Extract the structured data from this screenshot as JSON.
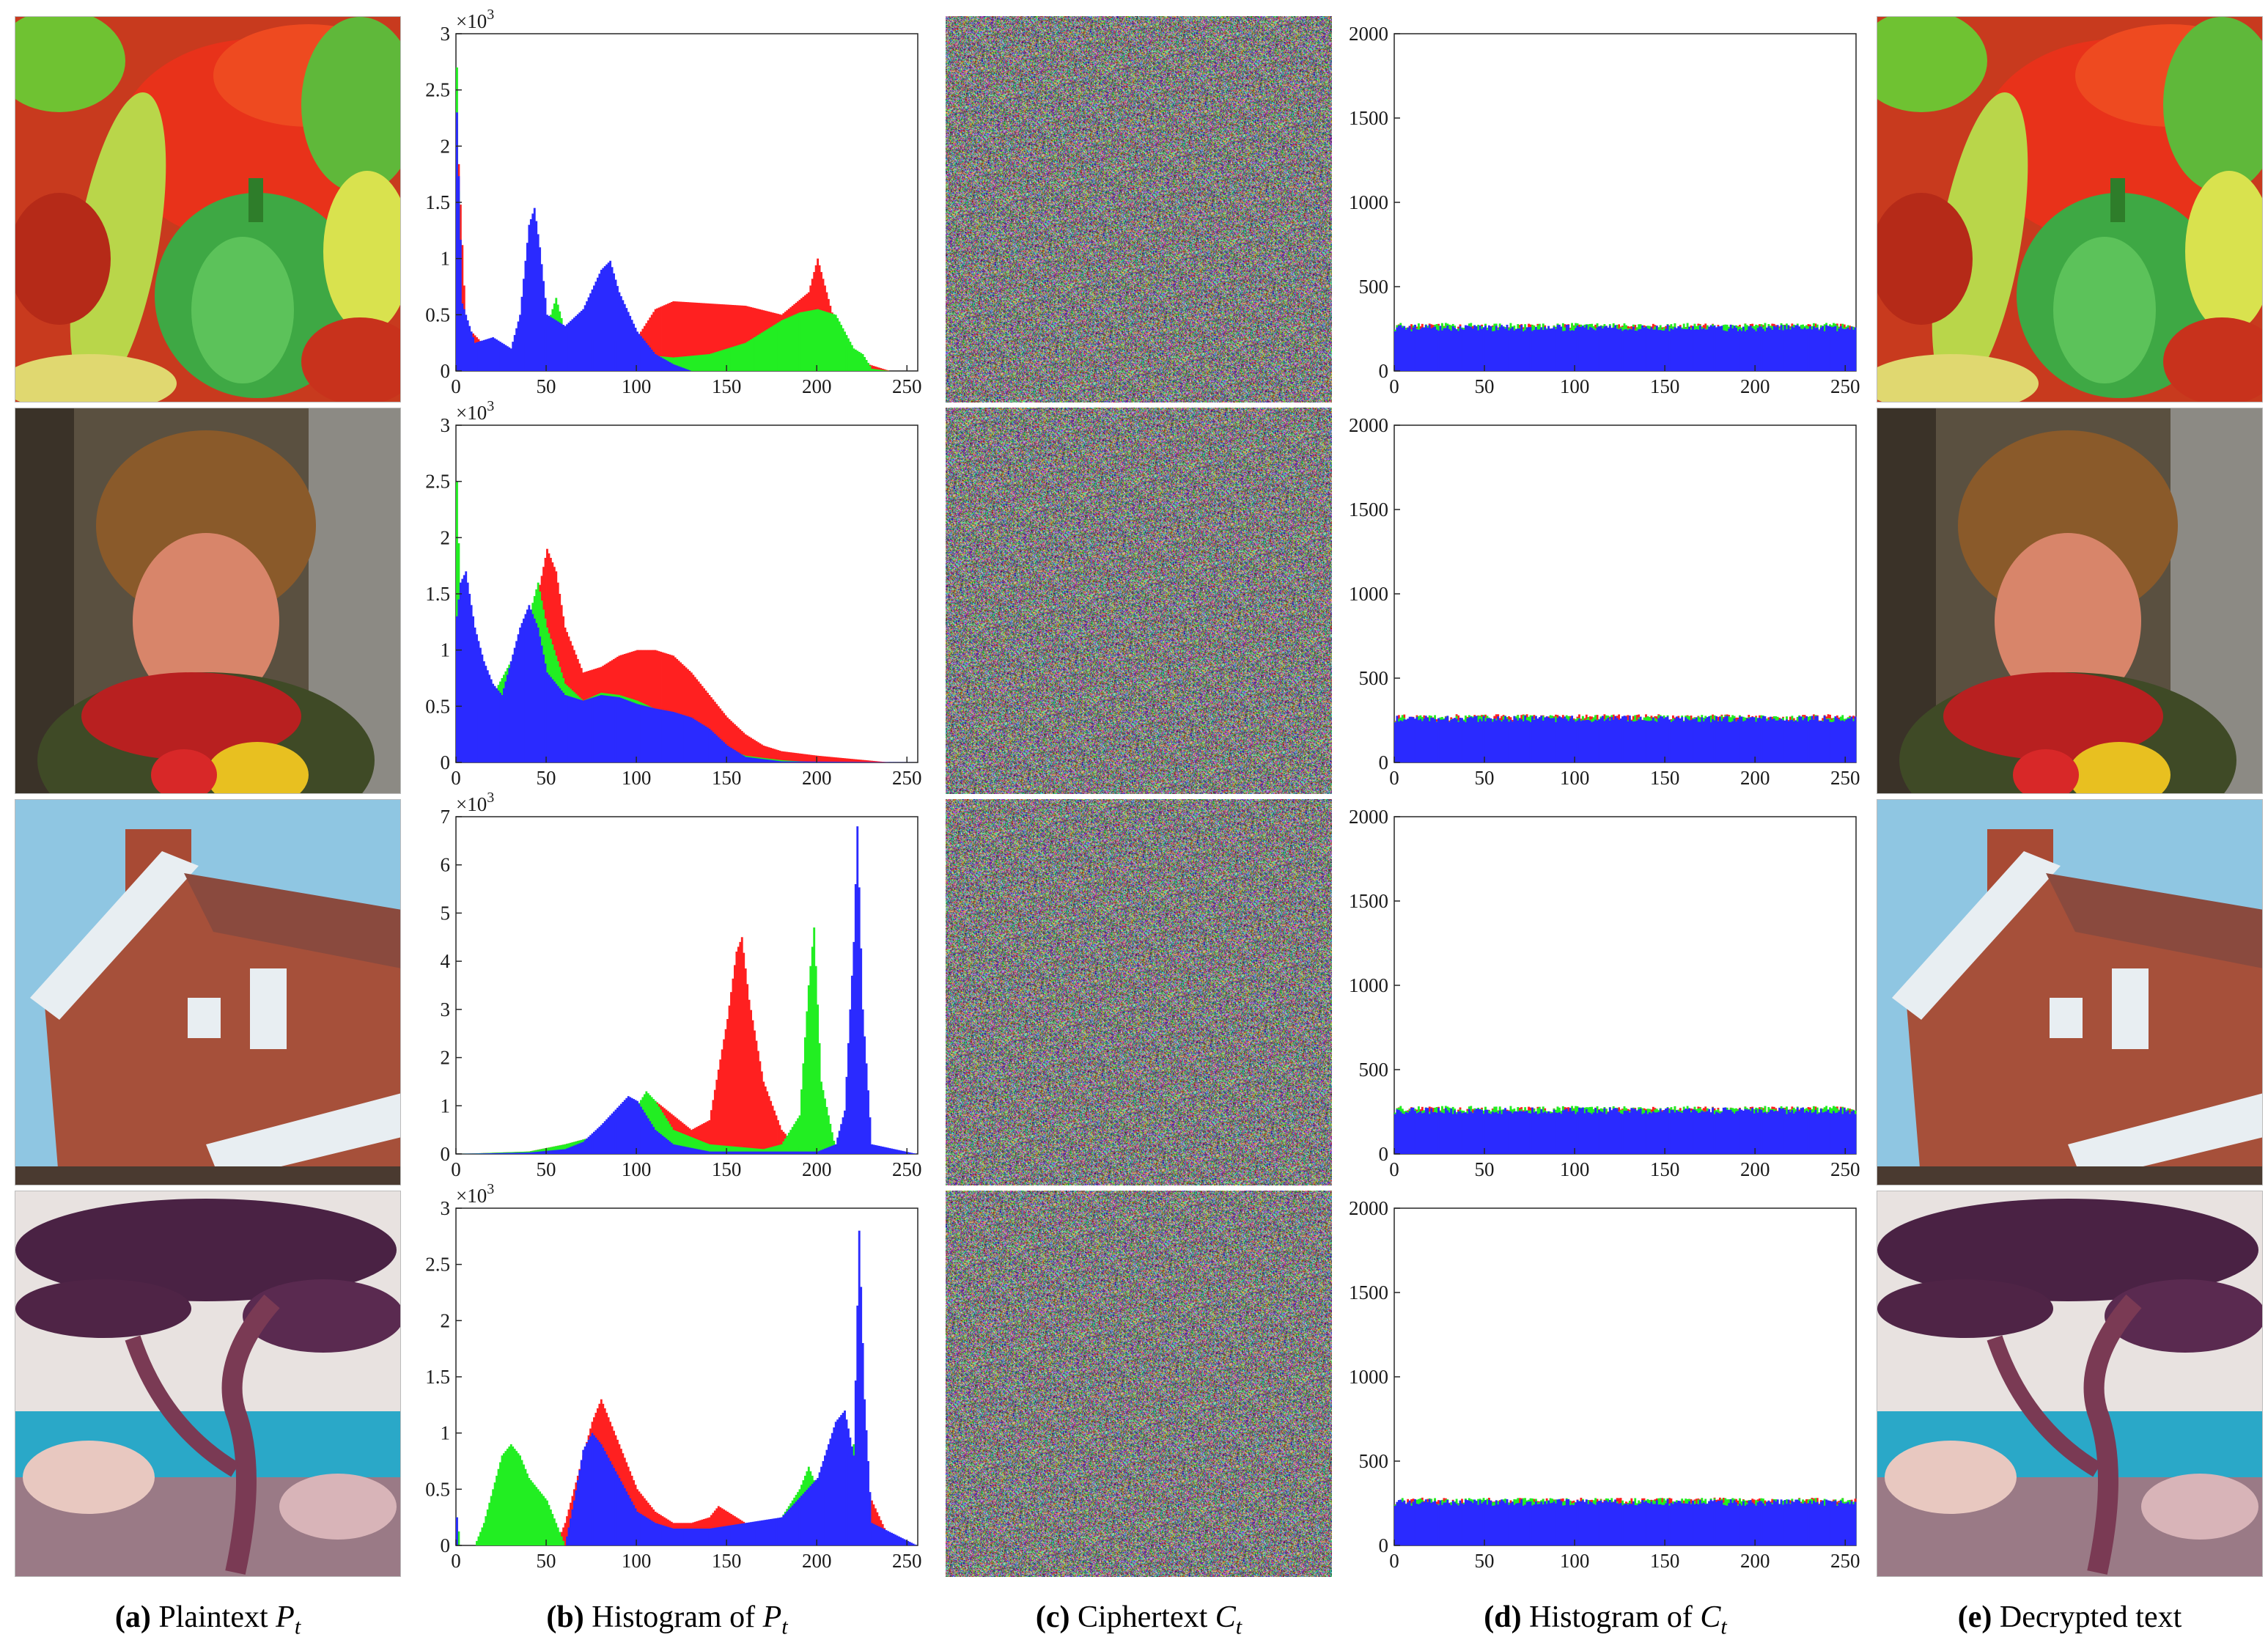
{
  "rows": [
    {
      "image_name": "peppers",
      "plain_ymax": 3,
      "plain_yticks": [
        0,
        0.5,
        1,
        1.5,
        2,
        2.5,
        3
      ],
      "plain_tick_labels": [
        "0",
        "0.5",
        "1",
        "1.5",
        "2",
        "2.5",
        "3"
      ]
    },
    {
      "image_name": "woman",
      "plain_ymax": 3,
      "plain_yticks": [
        0,
        0.5,
        1,
        1.5,
        2,
        2.5,
        3
      ],
      "plain_tick_labels": [
        "0",
        "0.5",
        "1",
        "1.5",
        "2",
        "2.5",
        "3"
      ]
    },
    {
      "image_name": "house",
      "plain_ymax": 7,
      "plain_yticks": [
        0,
        1,
        2,
        3,
        4,
        5,
        6,
        7
      ],
      "plain_tick_labels": [
        "0",
        "1",
        "2",
        "3",
        "4",
        "5",
        "6",
        "7"
      ]
    },
    {
      "image_name": "tree",
      "plain_ymax": 3,
      "plain_yticks": [
        0,
        0.5,
        1,
        1.5,
        2,
        2.5,
        3
      ],
      "plain_tick_labels": [
        "0",
        "0.5",
        "1",
        "1.5",
        "2",
        "2.5",
        "3"
      ]
    }
  ],
  "exponent_label": "×10",
  "exponent_sup": "3",
  "captions": {
    "a": {
      "letter": "(a)",
      "text": "Plaintext",
      "sym": "P",
      "sub": "t"
    },
    "b": {
      "letter": "(b)",
      "text": "Histogram of",
      "sym": "P",
      "sub": "t"
    },
    "c": {
      "letter": "(c)",
      "text": "Ciphertext",
      "sym": "C",
      "sub": "t"
    },
    "d": {
      "letter": "(d)",
      "text": "Histogram of",
      "sym": "C",
      "sub": "t"
    },
    "e": {
      "letter": "(e)",
      "text": "Decrypted text",
      "sym": "",
      "sub": ""
    }
  },
  "colors": {
    "red": "#ff2020",
    "green": "#22ee22",
    "blue": "#2a2aff"
  },
  "chart_data": [
    {
      "type": "bar",
      "title": "Histogram of Pt — peppers",
      "x_range": [
        0,
        255
      ],
      "xticks": [
        0,
        50,
        100,
        150,
        200,
        250
      ],
      "ylim": [
        0,
        3000
      ],
      "y_multiplier": "×10^3",
      "series": [
        {
          "name": "red",
          "x": [
            0,
            5,
            20,
            40,
            60,
            80,
            100,
            110,
            120,
            140,
            160,
            180,
            195,
            200,
            205,
            210,
            220,
            240,
            255
          ],
          "y": [
            2200,
            400,
            150,
            150,
            180,
            250,
            300,
            550,
            620,
            600,
            580,
            500,
            700,
            1000,
            700,
            400,
            100,
            0,
            0
          ]
        },
        {
          "name": "green",
          "x": [
            0,
            2,
            10,
            30,
            50,
            55,
            60,
            80,
            100,
            120,
            140,
            160,
            180,
            190,
            200,
            210,
            220,
            225,
            230,
            240,
            255
          ],
          "y": [
            2700,
            500,
            200,
            150,
            400,
            650,
            350,
            250,
            150,
            120,
            150,
            250,
            450,
            520,
            550,
            500,
            200,
            150,
            20,
            0,
            0
          ]
        },
        {
          "name": "blue",
          "x": [
            0,
            3,
            10,
            20,
            30,
            35,
            40,
            43,
            46,
            50,
            60,
            70,
            80,
            85,
            90,
            100,
            110,
            120,
            130,
            255
          ],
          "y": [
            2300,
            600,
            250,
            300,
            200,
            500,
            1300,
            1450,
            1100,
            500,
            400,
            550,
            900,
            980,
            700,
            350,
            150,
            60,
            0,
            0
          ]
        }
      ]
    },
    {
      "type": "bar",
      "title": "Histogram of Ct — peppers",
      "x_range": [
        0,
        255
      ],
      "xticks": [
        0,
        50,
        100,
        150,
        200,
        250
      ],
      "ylim": [
        0,
        2000
      ],
      "yticks": [
        0,
        500,
        1000,
        1500,
        2000
      ],
      "series": [
        {
          "name": "red",
          "level": 262
        },
        {
          "name": "green",
          "level": 265
        },
        {
          "name": "blue",
          "level": 255
        }
      ]
    },
    {
      "type": "bar",
      "title": "Histogram of Pt — woman",
      "x_range": [
        0,
        255
      ],
      "xticks": [
        0,
        50,
        100,
        150,
        200,
        250
      ],
      "ylim": [
        0,
        3000
      ],
      "y_multiplier": "×10^3",
      "series": [
        {
          "name": "red",
          "x": [
            0,
            3,
            10,
            20,
            30,
            40,
            45,
            50,
            55,
            60,
            70,
            80,
            90,
            100,
            110,
            120,
            130,
            140,
            150,
            160,
            170,
            180,
            200,
            220,
            240,
            255
          ],
          "y": [
            1500,
            300,
            200,
            250,
            400,
            800,
            1500,
            1900,
            1700,
            1200,
            800,
            850,
            950,
            1000,
            1000,
            950,
            800,
            600,
            400,
            250,
            150,
            100,
            60,
            30,
            0,
            0
          ]
        },
        {
          "name": "green",
          "x": [
            0,
            2,
            5,
            10,
            20,
            30,
            40,
            45,
            50,
            60,
            70,
            80,
            90,
            100,
            120,
            140,
            150,
            160,
            180,
            200,
            255
          ],
          "y": [
            2500,
            1400,
            700,
            450,
            600,
            900,
            1300,
            1600,
            1200,
            700,
            550,
            620,
            600,
            550,
            400,
            250,
            120,
            60,
            20,
            0,
            0
          ]
        },
        {
          "name": "blue",
          "x": [
            0,
            2,
            5,
            10,
            15,
            20,
            25,
            30,
            35,
            40,
            45,
            50,
            60,
            70,
            80,
            90,
            100,
            110,
            120,
            130,
            140,
            150,
            160,
            180,
            255
          ],
          "y": [
            1300,
            1600,
            1700,
            1200,
            900,
            700,
            600,
            900,
            1200,
            1400,
            1200,
            800,
            600,
            550,
            600,
            580,
            520,
            480,
            450,
            400,
            300,
            150,
            50,
            10,
            0
          ]
        }
      ]
    },
    {
      "type": "bar",
      "title": "Histogram of Ct — woman",
      "x_range": [
        0,
        255
      ],
      "xticks": [
        0,
        50,
        100,
        150,
        200,
        250
      ],
      "ylim": [
        0,
        2000
      ],
      "yticks": [
        0,
        500,
        1000,
        1500,
        2000
      ],
      "series": [
        {
          "name": "red",
          "level": 266
        },
        {
          "name": "green",
          "level": 262
        },
        {
          "name": "blue",
          "level": 258
        }
      ]
    },
    {
      "type": "bar",
      "title": "Histogram of Pt — house",
      "x_range": [
        0,
        255
      ],
      "xticks": [
        0,
        50,
        100,
        150,
        200,
        250
      ],
      "ylim": [
        0,
        7000
      ],
      "y_multiplier": "×10^3",
      "series": [
        {
          "name": "red",
          "x": [
            0,
            40,
            60,
            80,
            90,
            100,
            110,
            120,
            130,
            140,
            150,
            155,
            158,
            162,
            170,
            180,
            190,
            255
          ],
          "y": [
            0,
            50,
            200,
            400,
            600,
            900,
            1100,
            800,
            500,
            700,
            2800,
            4200,
            4500,
            3200,
            1500,
            500,
            100,
            0
          ]
        },
        {
          "name": "green",
          "x": [
            0,
            40,
            60,
            80,
            90,
            100,
            105,
            110,
            120,
            140,
            170,
            180,
            190,
            195,
            198,
            202,
            210,
            255
          ],
          "y": [
            0,
            50,
            200,
            400,
            700,
            1000,
            1300,
            1100,
            500,
            200,
            100,
            200,
            800,
            3500,
            4700,
            1500,
            100,
            0
          ]
        },
        {
          "name": "blue",
          "x": [
            0,
            40,
            60,
            70,
            80,
            90,
            95,
            100,
            105,
            110,
            120,
            140,
            200,
            210,
            215,
            220,
            222,
            225,
            230,
            255
          ],
          "y": [
            0,
            30,
            100,
            250,
            600,
            1000,
            1200,
            1100,
            800,
            500,
            200,
            50,
            50,
            200,
            900,
            4400,
            6800,
            3000,
            200,
            0
          ]
        }
      ]
    },
    {
      "type": "bar",
      "title": "Histogram of Ct — house",
      "x_range": [
        0,
        255
      ],
      "xticks": [
        0,
        50,
        100,
        150,
        200,
        250
      ],
      "ylim": [
        0,
        2000
      ],
      "yticks": [
        0,
        500,
        1000,
        1500,
        2000
      ],
      "series": [
        {
          "name": "red",
          "level": 262
        },
        {
          "name": "green",
          "level": 265
        },
        {
          "name": "blue",
          "level": 256
        }
      ]
    },
    {
      "type": "bar",
      "title": "Histogram of Pt — tree",
      "x_range": [
        0,
        255
      ],
      "xticks": [
        0,
        50,
        100,
        150,
        200,
        250
      ],
      "ylim": [
        0,
        3000
      ],
      "y_multiplier": "×10^3",
      "series": [
        {
          "name": "red",
          "x": [
            0,
            55,
            60,
            70,
            75,
            80,
            90,
            100,
            110,
            120,
            130,
            140,
            145,
            150,
            160,
            170,
            180,
            190,
            200,
            210,
            220,
            225,
            230,
            240,
            255
          ],
          "y": [
            0,
            0,
            200,
            800,
            1100,
            1300,
            900,
            500,
            300,
            200,
            200,
            250,
            350,
            300,
            200,
            200,
            250,
            300,
            400,
            600,
            900,
            600,
            400,
            50,
            0
          ]
        },
        {
          "name": "green",
          "x": [
            0,
            2,
            10,
            15,
            20,
            25,
            30,
            35,
            40,
            50,
            55,
            60,
            100,
            150,
            180,
            190,
            195,
            200,
            210,
            220,
            225,
            230,
            255
          ],
          "y": [
            250,
            0,
            0,
            200,
            500,
            800,
            900,
            800,
            600,
            400,
            200,
            0,
            0,
            150,
            250,
            500,
            700,
            500,
            300,
            900,
            400,
            100,
            0
          ]
        },
        {
          "name": "blue",
          "x": [
            0,
            1,
            2,
            60,
            65,
            70,
            75,
            80,
            90,
            100,
            110,
            120,
            140,
            160,
            180,
            200,
            210,
            215,
            220,
            223,
            226,
            230,
            255
          ],
          "y": [
            250,
            0,
            0,
            0,
            400,
            850,
            1000,
            900,
            600,
            300,
            200,
            150,
            150,
            200,
            250,
            600,
            1100,
            1200,
            800,
            2800,
            1300,
            200,
            0
          ]
        }
      ]
    },
    {
      "type": "bar",
      "title": "Histogram of Ct — tree",
      "x_range": [
        0,
        255
      ],
      "xticks": [
        0,
        50,
        100,
        150,
        200,
        250
      ],
      "ylim": [
        0,
        2000
      ],
      "yticks": [
        0,
        500,
        1000,
        1500,
        2000
      ],
      "series": [
        {
          "name": "red",
          "level": 264
        },
        {
          "name": "green",
          "level": 262
        },
        {
          "name": "blue",
          "level": 255
        }
      ]
    }
  ]
}
